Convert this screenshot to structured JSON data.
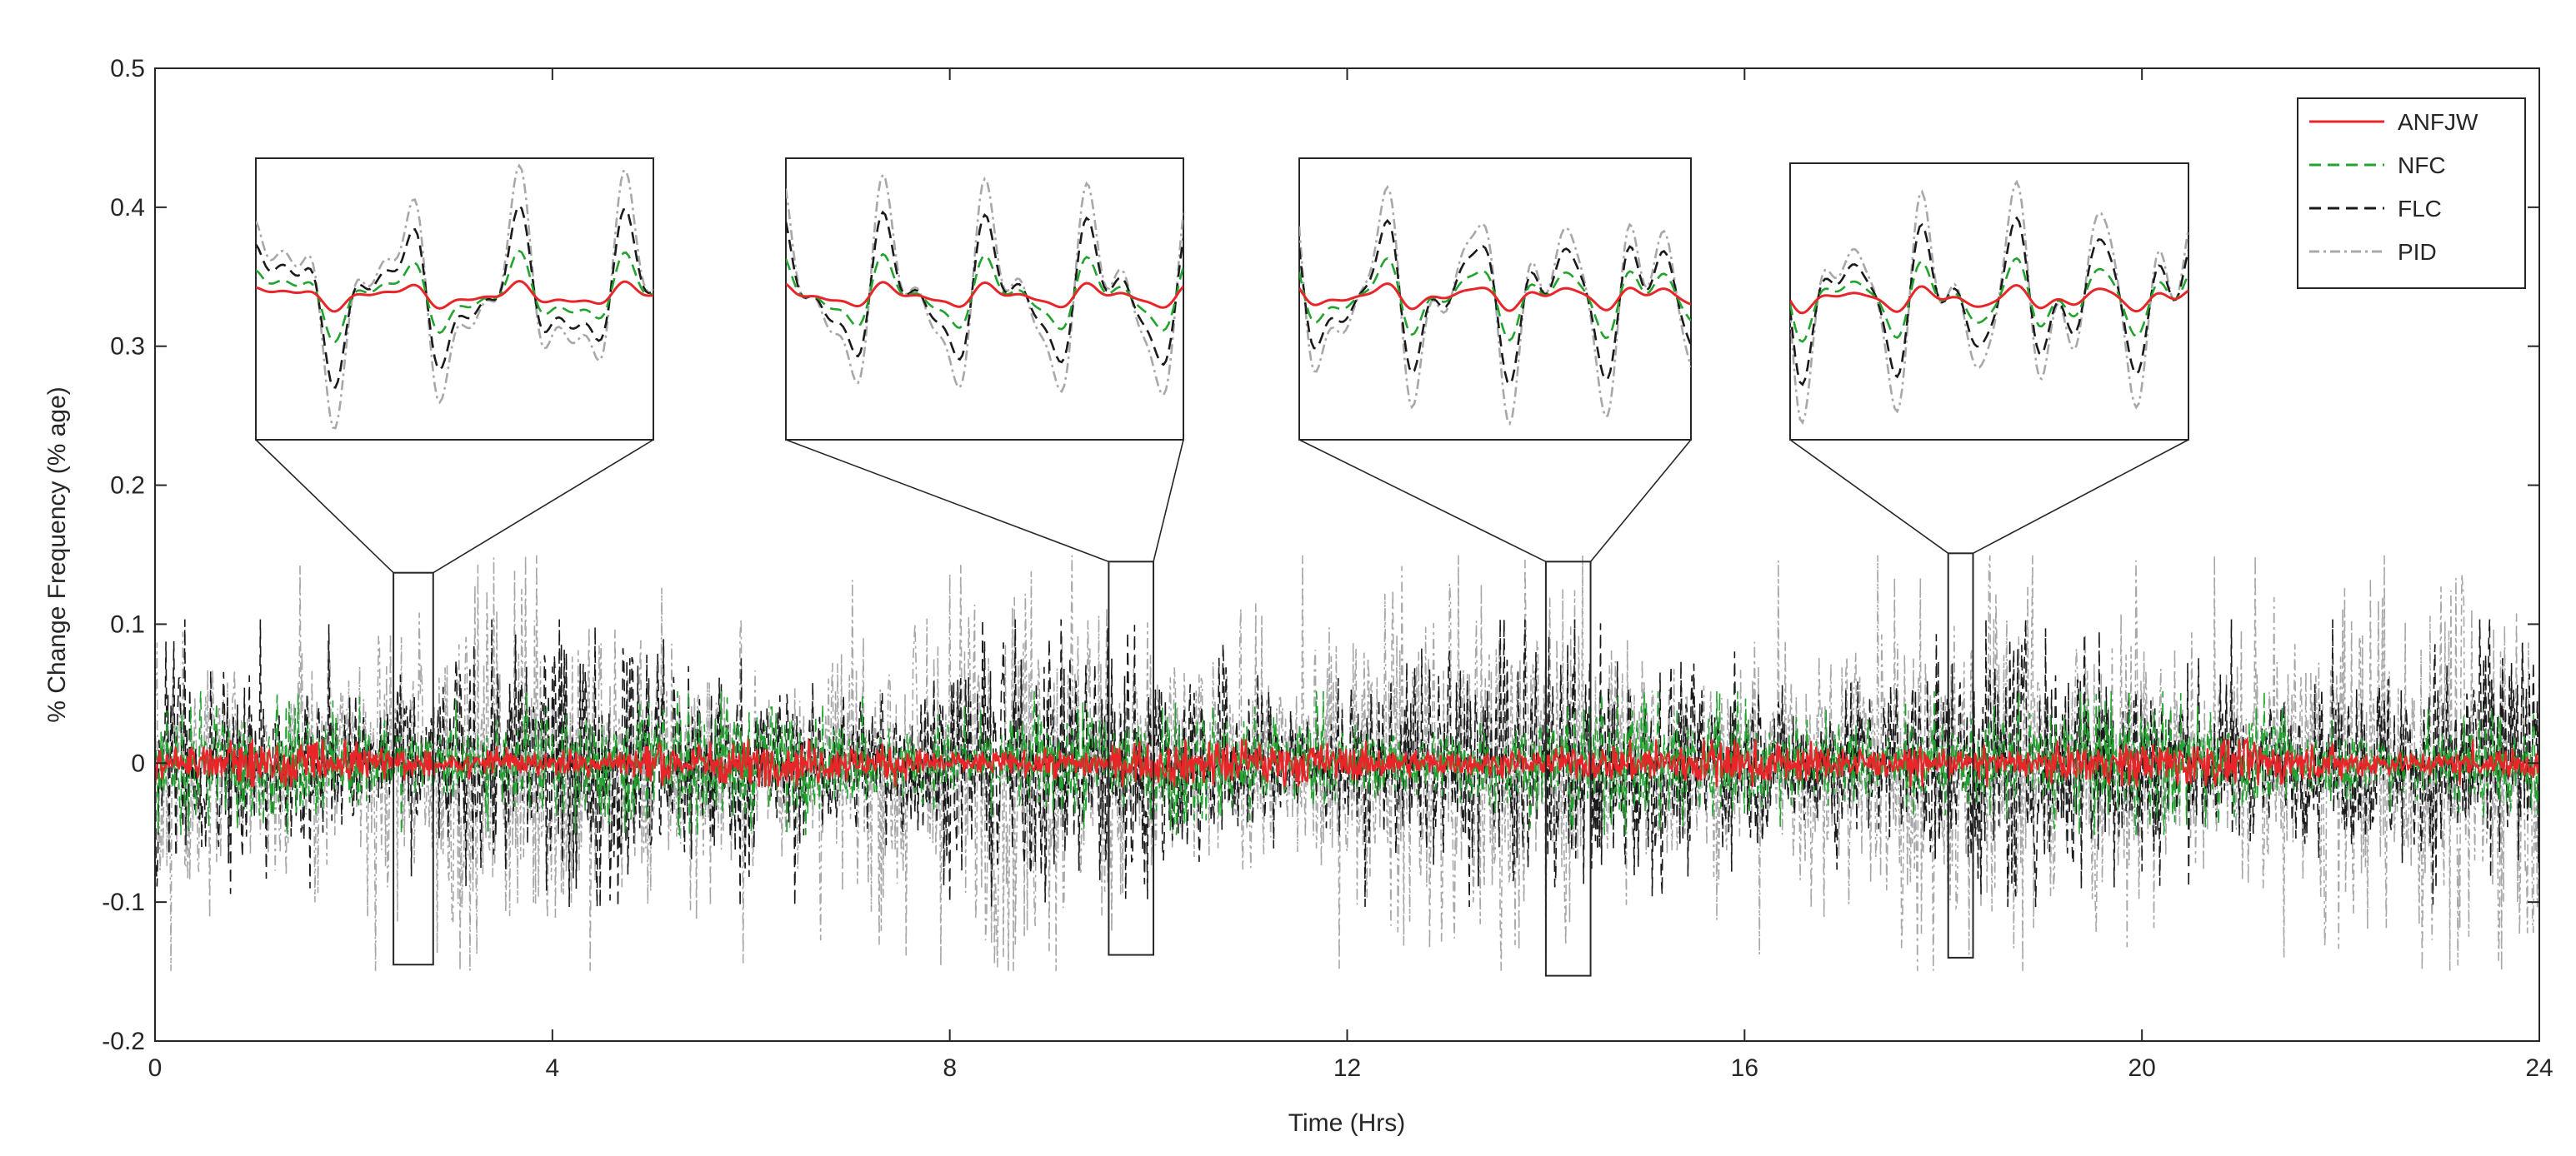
{
  "chart_data": {
    "type": "line",
    "title": "",
    "xlabel": "Time (Hrs)",
    "ylabel": "% Change Frequency (% age)",
    "xlim": [
      0,
      24
    ],
    "ylim": [
      -0.2,
      0.5
    ],
    "xticks": [
      0,
      4,
      8,
      12,
      16,
      20,
      24
    ],
    "yticks": [
      -0.2,
      -0.1,
      0,
      0.1,
      0.2,
      0.3,
      0.4,
      0.5
    ],
    "xtick_labels": [
      "0",
      "4",
      "8",
      "12",
      "16",
      "20",
      "24"
    ],
    "ytick_labels": [
      "-0.2",
      "-0.1",
      "0",
      "0.1",
      "0.2",
      "0.3",
      "0.4",
      "0.5"
    ],
    "grid": false,
    "legend_position": "top-right",
    "series": [
      {
        "name": "ANFJW",
        "color": "#e8262a",
        "style": "solid",
        "amplitude": 0.015
      },
      {
        "name": "NFC",
        "color": "#22a32f",
        "style": "dashed",
        "amplitude": 0.045
      },
      {
        "name": "FLC",
        "color": "#1a1a1a",
        "style": "dashed",
        "amplitude": 0.09
      },
      {
        "name": "PID",
        "color": "#a8a8a8",
        "style": "dashdot",
        "amplitude": 0.13
      }
    ],
    "zoom_windows": [
      {
        "x_start": 2.4,
        "x_end": 2.8,
        "y_min": -0.145,
        "y_max": 0.137
      },
      {
        "x_start": 9.6,
        "x_end": 10.05,
        "y_min": -0.138,
        "y_max": 0.145
      },
      {
        "x_start": 14.0,
        "x_end": 14.45,
        "y_min": -0.153,
        "y_max": 0.145
      },
      {
        "x_start": 18.05,
        "x_end": 18.3,
        "y_min": -0.14,
        "y_max": 0.151
      }
    ]
  }
}
